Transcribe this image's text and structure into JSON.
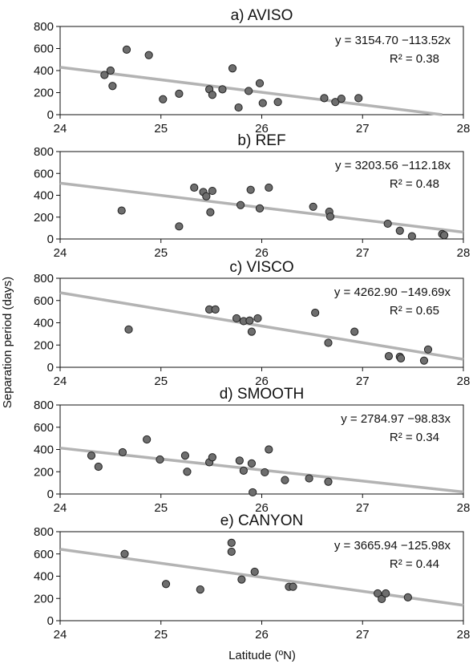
{
  "figure": {
    "ylabel": "Separation period (days)",
    "xlabel": "Latitude (ºN)",
    "xlim": [
      24,
      28
    ],
    "ylim": [
      0,
      800
    ],
    "xticks": [
      24,
      25,
      26,
      27,
      28
    ],
    "yticks": [
      0,
      200,
      400,
      600,
      800
    ],
    "fit_line_color": "#b3b3b3",
    "marker_color": "#6e6e6e",
    "marker_edge_color": "#222222"
  },
  "chart_data": [
    {
      "type": "scatter",
      "title": "a) AVISO",
      "equation": "y = 3154.70 −113.52x",
      "r2": "R² = 0.38",
      "fit": {
        "intercept": 3154.7,
        "slope": -113.52
      },
      "points": [
        [
          24.44,
          360
        ],
        [
          24.5,
          400
        ],
        [
          24.52,
          260
        ],
        [
          24.66,
          590
        ],
        [
          24.88,
          540
        ],
        [
          25.02,
          140
        ],
        [
          25.18,
          190
        ],
        [
          25.48,
          230
        ],
        [
          25.51,
          180
        ],
        [
          25.61,
          230
        ],
        [
          25.71,
          420
        ],
        [
          25.77,
          65
        ],
        [
          25.87,
          215
        ],
        [
          25.98,
          285
        ],
        [
          26.01,
          105
        ],
        [
          26.16,
          115
        ],
        [
          26.62,
          150
        ],
        [
          26.73,
          115
        ],
        [
          26.79,
          145
        ],
        [
          26.96,
          150
        ]
      ]
    },
    {
      "type": "scatter",
      "title": "b) REF",
      "equation": "y = 3203.56 −112.18x",
      "r2": "R² = 0.48",
      "fit": {
        "intercept": 3203.56,
        "slope": -112.18
      },
      "points": [
        [
          24.61,
          260
        ],
        [
          25.18,
          115
        ],
        [
          25.33,
          470
        ],
        [
          25.42,
          430
        ],
        [
          25.45,
          390
        ],
        [
          25.49,
          245
        ],
        [
          25.51,
          440
        ],
        [
          25.79,
          310
        ],
        [
          25.89,
          450
        ],
        [
          25.98,
          280
        ],
        [
          26.07,
          470
        ],
        [
          26.51,
          295
        ],
        [
          26.67,
          250
        ],
        [
          26.68,
          205
        ],
        [
          27.25,
          140
        ],
        [
          27.37,
          75
        ],
        [
          27.49,
          25
        ],
        [
          27.79,
          45
        ],
        [
          27.81,
          35
        ]
      ]
    },
    {
      "type": "scatter",
      "title": "c) VISCO",
      "equation": "y = 4262.90 −149.69x",
      "r2": "R² = 0.65",
      "fit": {
        "intercept": 4262.9,
        "slope": -149.69
      },
      "points": [
        [
          24.68,
          340
        ],
        [
          25.48,
          520
        ],
        [
          25.54,
          520
        ],
        [
          25.75,
          440
        ],
        [
          25.82,
          415
        ],
        [
          25.88,
          420
        ],
        [
          25.9,
          320
        ],
        [
          25.96,
          440
        ],
        [
          26.53,
          490
        ],
        [
          26.66,
          220
        ],
        [
          26.92,
          320
        ],
        [
          27.26,
          100
        ],
        [
          27.37,
          95
        ],
        [
          27.38,
          80
        ],
        [
          27.61,
          60
        ],
        [
          27.65,
          160
        ]
      ]
    },
    {
      "type": "scatter",
      "title": "d) SMOOTH",
      "equation": "y = 2784.97 −98.83x",
      "r2": "R² = 0.34",
      "fit": {
        "intercept": 2784.97,
        "slope": -98.83
      },
      "points": [
        [
          24.31,
          345
        ],
        [
          24.38,
          245
        ],
        [
          24.62,
          375
        ],
        [
          24.86,
          490
        ],
        [
          24.99,
          310
        ],
        [
          25.24,
          345
        ],
        [
          25.26,
          200
        ],
        [
          25.48,
          285
        ],
        [
          25.51,
          330
        ],
        [
          25.78,
          300
        ],
        [
          25.82,
          210
        ],
        [
          25.9,
          275
        ],
        [
          25.91,
          15
        ],
        [
          26.03,
          195
        ],
        [
          26.07,
          400
        ],
        [
          26.23,
          125
        ],
        [
          26.47,
          140
        ],
        [
          26.66,
          110
        ]
      ]
    },
    {
      "type": "scatter",
      "title": "e) CANYON",
      "equation": "y = 3665.94 −125.98x",
      "r2": "R² = 0.44",
      "fit": {
        "intercept": 3665.94,
        "slope": -125.98
      },
      "points": [
        [
          24.64,
          600
        ],
        [
          25.05,
          330
        ],
        [
          25.39,
          280
        ],
        [
          25.7,
          700
        ],
        [
          25.7,
          620
        ],
        [
          25.8,
          370
        ],
        [
          25.93,
          440
        ],
        [
          26.27,
          305
        ],
        [
          26.31,
          305
        ],
        [
          27.15,
          245
        ],
        [
          27.19,
          195
        ],
        [
          27.23,
          245
        ],
        [
          27.45,
          210
        ]
      ]
    }
  ]
}
